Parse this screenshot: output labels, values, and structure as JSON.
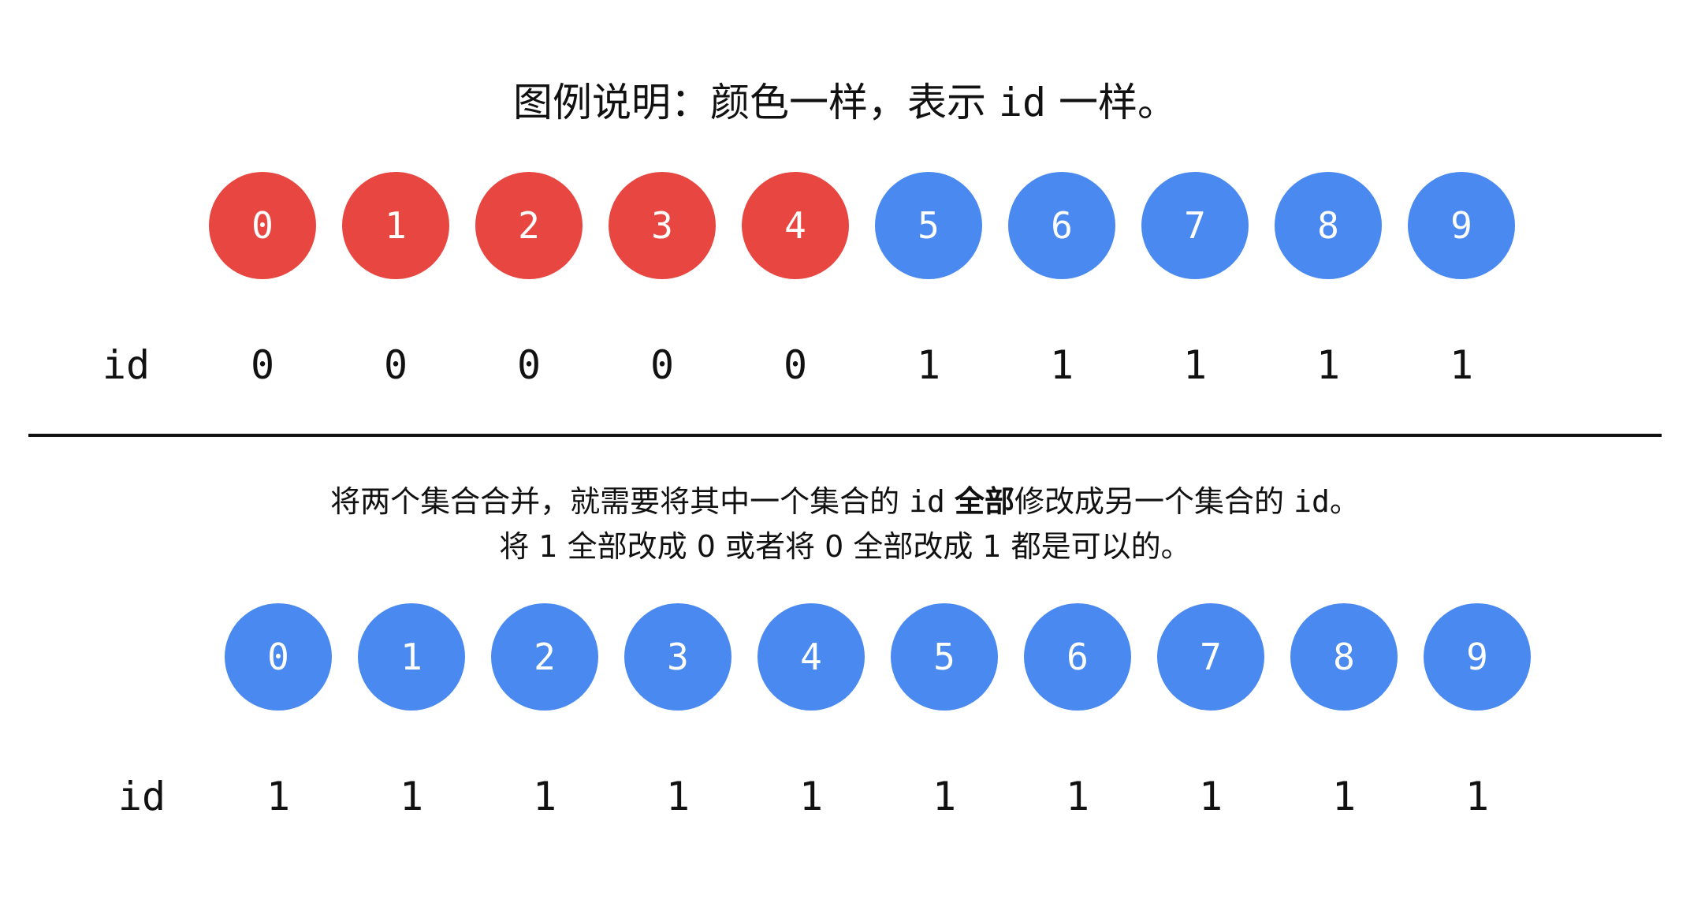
{
  "title": {
    "part1": "图例说明：颜色一样，表示 ",
    "code": "id",
    "part2": " 一样。"
  },
  "colors": {
    "red": "#E84640",
    "blue": "#4A89F0",
    "text": "#111111"
  },
  "top": {
    "row_label": "id",
    "nodes": [
      {
        "label": "0",
        "color": "red",
        "id": "0"
      },
      {
        "label": "1",
        "color": "red",
        "id": "0"
      },
      {
        "label": "2",
        "color": "red",
        "id": "0"
      },
      {
        "label": "3",
        "color": "red",
        "id": "0"
      },
      {
        "label": "4",
        "color": "red",
        "id": "0"
      },
      {
        "label": "5",
        "color": "blue",
        "id": "1"
      },
      {
        "label": "6",
        "color": "blue",
        "id": "1"
      },
      {
        "label": "7",
        "color": "blue",
        "id": "1"
      },
      {
        "label": "8",
        "color": "blue",
        "id": "1"
      },
      {
        "label": "9",
        "color": "blue",
        "id": "1"
      }
    ]
  },
  "description": {
    "line1_a": "将两个集合合并，就需要将其中一个集合的 ",
    "line1_code1": "id",
    "line1_b": " ",
    "line1_bold": "全部",
    "line1_c": "修改成另一个集合的 ",
    "line1_code2": "id",
    "line1_d": "。",
    "line2": "将 1 全部改成 0 或者将 0 全部改成 1 都是可以的。"
  },
  "bottom": {
    "row_label": "id",
    "nodes": [
      {
        "label": "0",
        "color": "blue",
        "id": "1"
      },
      {
        "label": "1",
        "color": "blue",
        "id": "1"
      },
      {
        "label": "2",
        "color": "blue",
        "id": "1"
      },
      {
        "label": "3",
        "color": "blue",
        "id": "1"
      },
      {
        "label": "4",
        "color": "blue",
        "id": "1"
      },
      {
        "label": "5",
        "color": "blue",
        "id": "1"
      },
      {
        "label": "6",
        "color": "blue",
        "id": "1"
      },
      {
        "label": "7",
        "color": "blue",
        "id": "1"
      },
      {
        "label": "8",
        "color": "blue",
        "id": "1"
      },
      {
        "label": "9",
        "color": "blue",
        "id": "1"
      }
    ]
  }
}
